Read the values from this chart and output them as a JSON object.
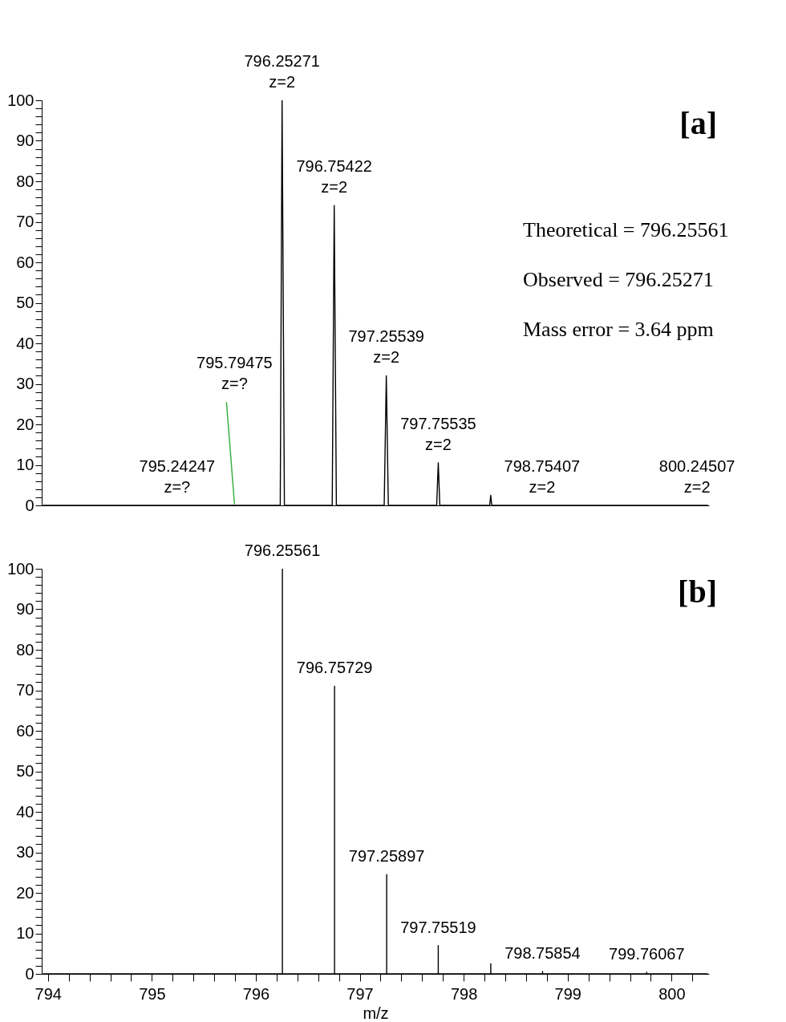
{
  "chart_data": [
    {
      "type": "line",
      "tick_labels": "y",
      "grid": false,
      "marker": "none",
      "line_style": "solid",
      "xlim": [
        793.94,
        800.36
      ],
      "ylim": [
        0,
        100
      ],
      "yticks": [
        0,
        {
          "value": 2,
          "label": null
        },
        {
          "value": 4,
          "label": null
        },
        {
          "value": 6,
          "label": null
        },
        {
          "value": 8,
          "label": null
        },
        10,
        {
          "value": 12,
          "label": null
        },
        {
          "value": 14,
          "label": null
        },
        {
          "value": 16,
          "label": null
        },
        {
          "value": 18,
          "label": null
        },
        20,
        {
          "value": 22,
          "label": null
        },
        {
          "value": 24,
          "label": null
        },
        {
          "value": 26,
          "label": null
        },
        {
          "value": 28,
          "label": null
        },
        30,
        {
          "value": 32,
          "label": null
        },
        {
          "value": 34,
          "label": null
        },
        {
          "value": 36,
          "label": null
        },
        {
          "value": 38,
          "label": null
        },
        40,
        {
          "value": 42,
          "label": null
        },
        {
          "value": 44,
          "label": null
        },
        {
          "value": 46,
          "label": null
        },
        {
          "value": 48,
          "label": null
        },
        50,
        {
          "value": 52,
          "label": null
        },
        {
          "value": 54,
          "label": null
        },
        {
          "value": 56,
          "label": null
        },
        {
          "value": 58,
          "label": null
        },
        60,
        {
          "value": 62,
          "label": null
        },
        {
          "value": 64,
          "label": null
        },
        {
          "value": 66,
          "label": null
        },
        {
          "value": 68,
          "label": null
        },
        70,
        {
          "value": 72,
          "label": null
        },
        {
          "value": 74,
          "label": null
        },
        {
          "value": 76,
          "label": null
        },
        {
          "value": 78,
          "label": null
        },
        80,
        {
          "value": 82,
          "label": null
        },
        {
          "value": 84,
          "label": null
        },
        {
          "value": 86,
          "label": null
        },
        {
          "value": 88,
          "label": null
        },
        90,
        {
          "value": 92,
          "label": null
        },
        {
          "value": 94,
          "label": null
        },
        {
          "value": 96,
          "label": null
        },
        {
          "value": 98,
          "label": null
        },
        100
      ],
      "series": [
        {
          "color": "#000000",
          "x": [
            793.95,
            796.235,
            796.2527,
            796.275,
            796.735,
            796.7542,
            796.775,
            797.235,
            797.2554,
            797.275,
            797.74,
            797.7554,
            797.77,
            798.25,
            798.26,
            798.27,
            800.35
          ],
          "values": [
            0,
            0,
            100,
            0,
            0,
            74,
            0,
            0,
            32,
            0,
            0,
            10.5,
            0,
            0,
            2.5,
            0,
            0
          ]
        }
      ],
      "annotations": [
        {
          "text": "796.25271\nz=2",
          "x": 796.25271,
          "y": 100
        },
        {
          "text": "796.75422\nz=2",
          "x": 796.75422,
          "y": 74
        },
        {
          "text": "797.25539\nz=2",
          "x": 797.25539,
          "y": 32
        },
        {
          "text": "797.75535\nz=2",
          "x": 797.75535,
          "y": 10.5
        },
        {
          "text": "795.24247\nz=?",
          "x": 795.24247,
          "y": 0
        },
        {
          "text": "795.79475\nz=?",
          "x": 795.79475,
          "y": 0.3
        },
        {
          "text": "798.75407\nz=2",
          "x": 798.75407,
          "y": 0
        },
        {
          "text": "800.24507\nz=2",
          "x": 800.24507,
          "y": 0
        },
        "[a]",
        "Theoretical = 796.25561",
        "Observed = 796.25271",
        "Mass error = 3.64 ppm"
      ]
    },
    {
      "type": "line",
      "grid": false,
      "marker": "none",
      "line_style": "solid",
      "xlabel": "m/z",
      "xlim": [
        793.94,
        800.36
      ],
      "ylim": [
        0,
        100
      ],
      "xticks": [
        794,
        {
          "value": 794.2,
          "label": null
        },
        {
          "value": 794.4,
          "label": null
        },
        {
          "value": 794.6,
          "label": null
        },
        {
          "value": 794.8,
          "label": null
        },
        795,
        {
          "value": 795.2,
          "label": null
        },
        {
          "value": 795.4,
          "label": null
        },
        {
          "value": 795.6,
          "label": null
        },
        {
          "value": 795.8,
          "label": null
        },
        796,
        {
          "value": 796.2,
          "label": null
        },
        {
          "value": 796.4,
          "label": null
        },
        {
          "value": 796.6,
          "label": null
        },
        {
          "value": 796.8,
          "label": null
        },
        797,
        {
          "value": 797.2,
          "label": null
        },
        {
          "value": 797.4,
          "label": null
        },
        {
          "value": 797.6,
          "label": null
        },
        {
          "value": 797.8,
          "label": null
        },
        798,
        {
          "value": 798.2,
          "label": null
        },
        {
          "value": 798.4,
          "label": null
        },
        {
          "value": 798.6,
          "label": null
        },
        {
          "value": 798.8,
          "label": null
        },
        799,
        {
          "value": 799.2,
          "label": null
        },
        {
          "value": 799.4,
          "label": null
        },
        {
          "value": 799.6,
          "label": null
        },
        {
          "value": 799.8,
          "label": null
        },
        800,
        {
          "value": 800.2,
          "label": null
        }
      ],
      "yticks": [
        0,
        {
          "value": 2,
          "label": null
        },
        {
          "value": 4,
          "label": null
        },
        {
          "value": 6,
          "label": null
        },
        {
          "value": 8,
          "label": null
        },
        10,
        {
          "value": 12,
          "label": null
        },
        {
          "value": 14,
          "label": null
        },
        {
          "value": 16,
          "label": null
        },
        {
          "value": 18,
          "label": null
        },
        20,
        {
          "value": 22,
          "label": null
        },
        {
          "value": 24,
          "label": null
        },
        {
          "value": 26,
          "label": null
        },
        {
          "value": 28,
          "label": null
        },
        30,
        {
          "value": 32,
          "label": null
        },
        {
          "value": 34,
          "label": null
        },
        {
          "value": 36,
          "label": null
        },
        {
          "value": 38,
          "label": null
        },
        40,
        {
          "value": 42,
          "label": null
        },
        {
          "value": 44,
          "label": null
        },
        {
          "value": 46,
          "label": null
        },
        {
          "value": 48,
          "label": null
        },
        50,
        {
          "value": 52,
          "label": null
        },
        {
          "value": 54,
          "label": null
        },
        {
          "value": 56,
          "label": null
        },
        {
          "value": 58,
          "label": null
        },
        60,
        {
          "value": 62,
          "label": null
        },
        {
          "value": 64,
          "label": null
        },
        {
          "value": 66,
          "label": null
        },
        {
          "value": 68,
          "label": null
        },
        70,
        {
          "value": 72,
          "label": null
        },
        {
          "value": 74,
          "label": null
        },
        {
          "value": 76,
          "label": null
        },
        {
          "value": 78,
          "label": null
        },
        80,
        {
          "value": 82,
          "label": null
        },
        {
          "value": 84,
          "label": null
        },
        {
          "value": 86,
          "label": null
        },
        {
          "value": 88,
          "label": null
        },
        90,
        {
          "value": 92,
          "label": null
        },
        {
          "value": 94,
          "label": null
        },
        {
          "value": 96,
          "label": null
        },
        {
          "value": 98,
          "label": null
        },
        100
      ],
      "series": [
        {
          "color": "#000000",
          "x": [
            793.95,
            796.25561,
            796.25561,
            796.25561,
            796.75729,
            796.75729,
            796.75729,
            797.25897,
            797.25897,
            797.25897,
            797.75519,
            797.75519,
            797.75519,
            798.2605,
            798.2605,
            798.2605,
            798.75854,
            798.75854,
            798.75854,
            799.76067,
            799.76067,
            799.76067,
            800.35
          ],
          "values": [
            0,
            0,
            100,
            0,
            0,
            71,
            0,
            0,
            24.5,
            0,
            0,
            7,
            0,
            0,
            2.5,
            0,
            0,
            0.6,
            0,
            0,
            0.4,
            0,
            0
          ]
        }
      ],
      "annotations": [
        {
          "text": "796.25561",
          "x": 796.25561,
          "y": 100
        },
        {
          "text": "796.75729",
          "x": 796.75729,
          "y": 71
        },
        {
          "text": "797.25897",
          "x": 797.25897,
          "y": 24.5
        },
        {
          "text": "797.75519",
          "x": 797.75519,
          "y": 7
        },
        {
          "text": "798.75854",
          "x": 798.75854,
          "y": 0.6
        },
        {
          "text": "799.76067",
          "x": 799.76067,
          "y": 0.4
        },
        "[b]"
      ]
    }
  ]
}
